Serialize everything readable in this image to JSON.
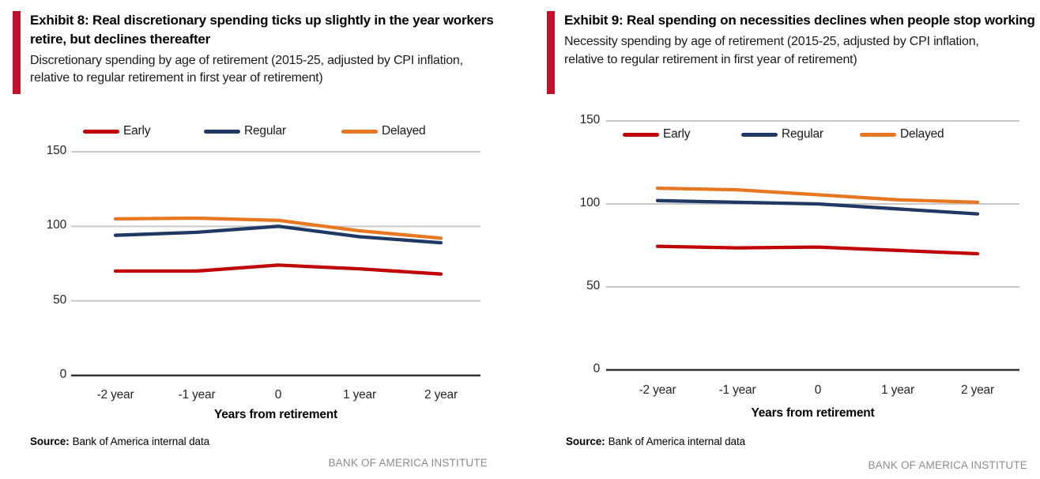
{
  "panels": [
    {
      "title": "Exhibit 8: Real discretionary spending ticks up slightly in the year workers retire, but declines thereafter",
      "subtitle": "Discretionary spending by age of retirement (2015-25, adjusted by CPI inflation, relative to regular retirement in first year of retirement)",
      "source_label": "Source:",
      "source_text": "Bank of America internal data",
      "brand_footer": "BANK OF AMERICA INSTITUTE"
    },
    {
      "title": "Exhibit 9: Real spending on necessities declines when people stop working",
      "subtitle": "Necessity spending by age of retirement (2015-25, adjusted by CPI inflation, relative to regular retirement in first year of retirement)",
      "source_label": "Source:",
      "source_text": "Bank of America internal data",
      "brand_footer": "BANK OF AMERICA INSTITUTE"
    }
  ],
  "chart_data": [
    {
      "type": "line",
      "title": "Discretionary spending by age of retirement",
      "categories": [
        "-2 year",
        "-1 year",
        "0",
        "1 year",
        "2 year"
      ],
      "series": [
        {
          "name": "Early",
          "color": "#c00000",
          "values": [
            70,
            70,
            74,
            71.5,
            68
          ]
        },
        {
          "name": "Regular",
          "color": "#1f3864",
          "values": [
            94,
            96,
            100,
            93,
            89
          ]
        },
        {
          "name": "Delayed",
          "color": "#e87722",
          "values": [
            105,
            105.5,
            104,
            97,
            92
          ]
        }
      ],
      "xlabel": "Years from retirement",
      "ylabel": "",
      "ylim": [
        0,
        150
      ],
      "yticks": [
        0,
        50,
        100,
        150
      ],
      "grid": "horizontal",
      "legend_position": "top"
    },
    {
      "type": "line",
      "title": "Necessity spending by age of retirement",
      "categories": [
        "-2 year",
        "-1 year",
        "0",
        "1 year",
        "2 year"
      ],
      "series": [
        {
          "name": "Early",
          "color": "#c00000",
          "values": [
            74.5,
            73.5,
            74,
            72,
            70
          ]
        },
        {
          "name": "Regular",
          "color": "#1f3864",
          "values": [
            102,
            101,
            100,
            97,
            94
          ]
        },
        {
          "name": "Delayed",
          "color": "#e87722",
          "values": [
            109.5,
            108.5,
            105.5,
            102.5,
            101
          ]
        }
      ],
      "xlabel": "Years from retirement",
      "ylabel": "",
      "ylim": [
        0,
        150
      ],
      "yticks": [
        0,
        50,
        100,
        150
      ],
      "grid": "horizontal",
      "legend_position": "inside-top"
    }
  ],
  "colors": {
    "accent_bar": "#c3112d",
    "early_line": "#c00000",
    "regular_line": "#1f3864",
    "delayed_line": "#e87722",
    "gridline": "#c9c9c9",
    "zero_axis": "#333333",
    "brand_gray": "#8c8c8c"
  }
}
